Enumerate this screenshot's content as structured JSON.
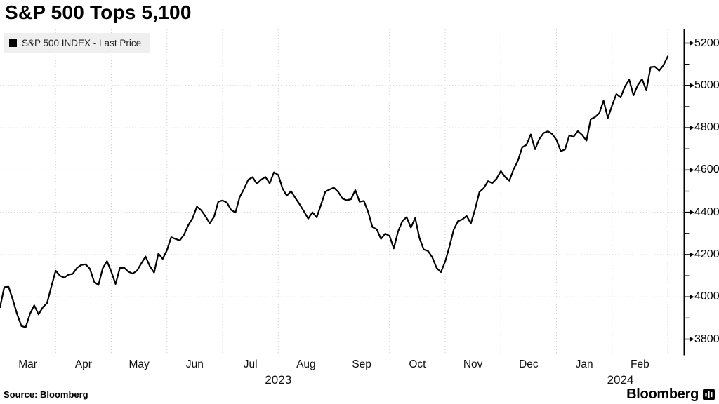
{
  "title": "S&P 500 Tops 5,100",
  "legend": {
    "swatch_color": "#000000",
    "label": "S&P 500 INDEX - Last Price"
  },
  "source_note": "Source: Bloomberg",
  "brand": {
    "name": "Bloomberg"
  },
  "colors": {
    "line": "#000000",
    "grid": "#cfcfcf",
    "axis": "#000000",
    "legend_bg": "#efefef",
    "background": "#ffffff"
  },
  "chart_data": {
    "type": "line",
    "title": "S&P 500 Tops 5,100",
    "xlabel": "",
    "ylabel": "",
    "grid": "dotted",
    "legend_position": "top-left",
    "x_range": [
      "Mar 2023",
      "Mar 2024"
    ],
    "x_months": [
      "Mar",
      "Apr",
      "May",
      "Jun",
      "Jul",
      "Aug",
      "Sep",
      "Oct",
      "Nov",
      "Dec",
      "Jan",
      "Feb"
    ],
    "x_year_labels": [
      "2023",
      "2024"
    ],
    "y_ticks": [
      3800,
      4000,
      4200,
      4400,
      4600,
      4800,
      5000,
      5200
    ],
    "y_minor_ticks": [
      3900,
      4100,
      4300,
      4500,
      4700,
      4900,
      5100
    ],
    "ylim": [
      3727,
      5265
    ],
    "series": [
      {
        "name": "S&P 500 INDEX - Last Price",
        "color": "#000000",
        "values": [
          3951,
          4046,
          4048,
          3986,
          3918,
          3862,
          3856,
          3920,
          3960,
          3917,
          3951,
          3971,
          4050,
          4124,
          4100,
          4091,
          4105,
          4109,
          4137,
          4151,
          4154,
          4133,
          4071,
          4056,
          4135,
          4169,
          4119,
          4061,
          4136,
          4138,
          4119,
          4110,
          4124,
          4158,
          4191,
          4145,
          4115,
          4205,
          4180,
          4221,
          4282,
          4274,
          4267,
          4294,
          4339,
          4372,
          4426,
          4410,
          4381,
          4348,
          4378,
          4450,
          4456,
          4446,
          4411,
          4399,
          4472,
          4510,
          4554,
          4566,
          4535,
          4554,
          4567,
          4537,
          4589,
          4577,
          4513,
          4478,
          4500,
          4468,
          4438,
          4405,
          4370,
          4400,
          4376,
          4436,
          4497,
          4508,
          4516,
          4497,
          4465,
          4457,
          4462,
          4505,
          4450,
          4454,
          4402,
          4330,
          4320,
          4274,
          4299,
          4288,
          4229,
          4309,
          4358,
          4377,
          4328,
          4373,
          4278,
          4224,
          4217,
          4187,
          4137,
          4117,
          4167,
          4238,
          4318,
          4358,
          4366,
          4383,
          4347,
          4415,
          4496,
          4514,
          4547,
          4538,
          4559,
          4595,
          4567,
          4549,
          4604,
          4644,
          4707,
          4719,
          4768,
          4698,
          4747,
          4775,
          4783,
          4770,
          4743,
          4689,
          4697,
          4764,
          4757,
          4784,
          4766,
          4739,
          4840,
          4850,
          4869,
          4928,
          4846,
          4906,
          4959,
          4943,
          4995,
          5027,
          4953,
          5001,
          5030,
          4976,
          5087,
          5089,
          5070,
          5096,
          5137
        ]
      }
    ]
  }
}
